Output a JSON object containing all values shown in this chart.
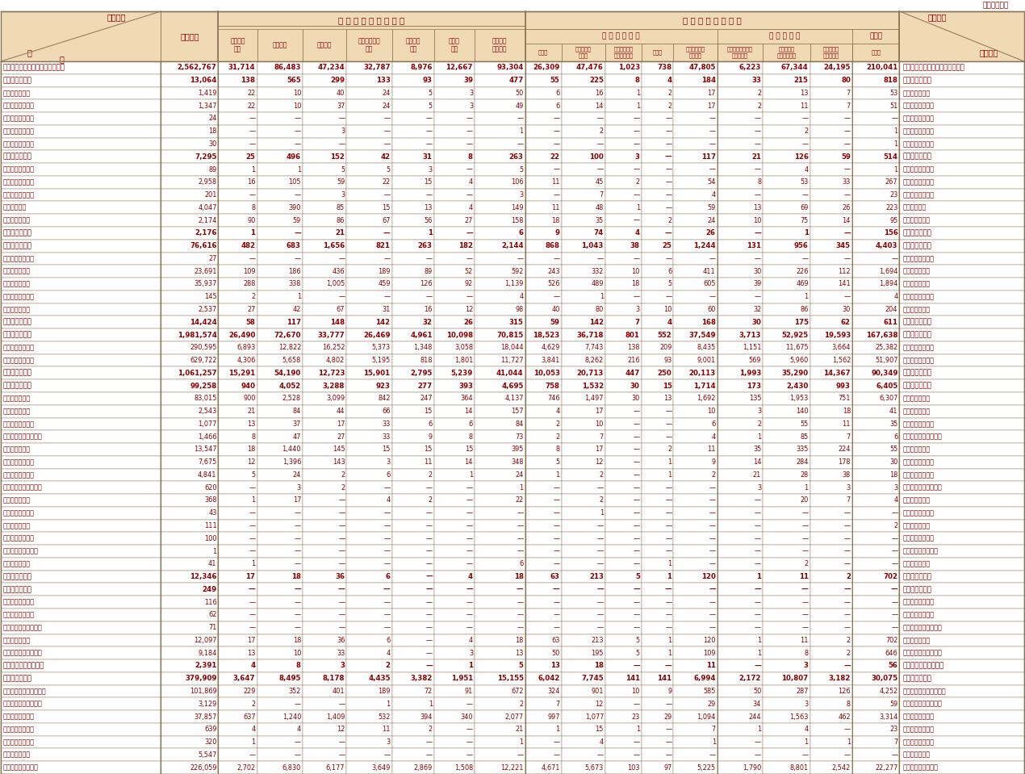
{
  "rows": [
    [
      "刑法犯総数（交通業過を除く。）",
      "2,562,767",
      "31,714",
      "86,483",
      "47,234",
      "32,787",
      "8,976",
      "12,667",
      "93,304",
      "26,309",
      "47,476",
      "1,023",
      "738",
      "47,805",
      "6,223",
      "67,344",
      "24,195",
      "210,041",
      "刑法犯総数（交通業過を除く。）"
    ],
    [
      "凶　　悪　　犯",
      "13,064",
      "138",
      "565",
      "299",
      "133",
      "93",
      "39",
      "477",
      "55",
      "225",
      "8",
      "4",
      "184",
      "33",
      "215",
      "80",
      "818",
      "凶　　悪　　犯"
    ],
    [
      "殺　　　　　人",
      "1,419",
      "22",
      "10",
      "40",
      "24",
      "5",
      "3",
      "50",
      "6",
      "16",
      "1",
      "2",
      "17",
      "2",
      "13",
      "7",
      "53",
      "殺　　　　　人"
    ],
    [
      "　殺　　　　　人",
      "1,347",
      "22",
      "10",
      "37",
      "24",
      "5",
      "3",
      "49",
      "6",
      "14",
      "1",
      "2",
      "17",
      "2",
      "11",
      "7",
      "51",
      "　殺　　　　　人"
    ],
    [
      "　嬰　　児　　殺",
      "24",
      "—",
      "—",
      "—",
      "—",
      "—",
      "—",
      "—",
      "—",
      "—",
      "—",
      "—",
      "—",
      "—",
      "—",
      "—",
      "—",
      "　嬰　　児　　殺"
    ],
    [
      "　殺　人　予　備",
      "18",
      "—",
      "—",
      "3",
      "—",
      "—",
      "—",
      "1",
      "—",
      "2",
      "—",
      "—",
      "—",
      "—",
      "2",
      "—",
      "1",
      "　殺　人　予　備"
    ],
    [
      "　自　殺　関　与",
      "30",
      "—",
      "—",
      "—",
      "—",
      "—",
      "—",
      "—",
      "—",
      "—",
      "—",
      "—",
      "—",
      "—",
      "—",
      "—",
      "1",
      "　自　殺　関　与"
    ],
    [
      "強　　　　　盗",
      "7,295",
      "25",
      "496",
      "152",
      "42",
      "31",
      "8",
      "263",
      "22",
      "100",
      "3",
      "—",
      "117",
      "21",
      "126",
      "59",
      "514",
      "強　　　　　盗"
    ],
    [
      "　強　盗　殺　人",
      "89",
      "1",
      "1",
      "5",
      "5",
      "3",
      "—",
      "5",
      "—",
      "—",
      "—",
      "—",
      "—",
      "—",
      "4",
      "—",
      "1",
      "　強　盗　殺　人"
    ],
    [
      "　強　盗　傷　人",
      "2,958",
      "16",
      "105",
      "59",
      "22",
      "15",
      "4",
      "106",
      "11",
      "45",
      "2",
      "—",
      "54",
      "8",
      "53",
      "33",
      "267",
      "　強　盗　傷　人"
    ],
    [
      "　強　盗　強　姦",
      "201",
      "—",
      "—",
      "3",
      "—",
      "—",
      "—",
      "3",
      "—",
      "7",
      "—",
      "—",
      "4",
      "—",
      "—",
      "—",
      "23",
      "　強　盗　強　姦"
    ],
    [
      "強盗・準強盗",
      "4,047",
      "8",
      "390",
      "85",
      "15",
      "13",
      "4",
      "149",
      "11",
      "48",
      "1",
      "—",
      "59",
      "13",
      "69",
      "26",
      "223",
      "強盗・準強盗"
    ],
    [
      "放　　　　　火",
      "2,174",
      "90",
      "59",
      "86",
      "67",
      "56",
      "27",
      "158",
      "18",
      "35",
      "—",
      "2",
      "24",
      "10",
      "75",
      "14",
      "95",
      "放　　　　　火"
    ],
    [
      "強　　　　　姦",
      "2,176",
      "1",
      "—",
      "21",
      "—",
      "1",
      "—",
      "6",
      "9",
      "74",
      "4",
      "—",
      "26",
      "—",
      "1",
      "—",
      "156",
      "強　　　　　姦"
    ],
    [
      "粗　　暴　　犯",
      "76,616",
      "482",
      "683",
      "1,656",
      "821",
      "263",
      "182",
      "2,144",
      "868",
      "1,043",
      "38",
      "25",
      "1,244",
      "131",
      "956",
      "345",
      "4,403",
      "粗　　暴　　犯"
    ],
    [
      "　凶器準備集合行",
      "27",
      "—",
      "—",
      "—",
      "—",
      "—",
      "—",
      "—",
      "—",
      "—",
      "—",
      "—",
      "—",
      "—",
      "—",
      "—",
      "—",
      "　凶器準備集合行"
    ],
    [
      "暴　　　　　行",
      "23,691",
      "109",
      "186",
      "436",
      "189",
      "89",
      "52",
      "592",
      "243",
      "332",
      "10",
      "6",
      "411",
      "30",
      "226",
      "112",
      "1,694",
      "暴　　　　　行"
    ],
    [
      "傷　　　　　害",
      "35,937",
      "288",
      "338",
      "1,005",
      "459",
      "126",
      "92",
      "1,139",
      "526",
      "489",
      "18",
      "5",
      "605",
      "39",
      "469",
      "141",
      "1,894",
      "傷　　　　　害"
    ],
    [
      "　うち）傷害致死",
      "145",
      "2",
      "1",
      "—",
      "—",
      "—",
      "—",
      "4",
      "—",
      "1",
      "—",
      "—",
      "—",
      "—",
      "1",
      "—",
      "4",
      "　うち）傷害致死"
    ],
    [
      "脅　　　　　迫",
      "2,537",
      "27",
      "42",
      "67",
      "31",
      "16",
      "12",
      "98",
      "40",
      "80",
      "3",
      "10",
      "60",
      "32",
      "86",
      "30",
      "204",
      "脅　　　　　迫"
    ],
    [
      "恐　　　　　喝",
      "14,424",
      "58",
      "117",
      "148",
      "142",
      "32",
      "26",
      "315",
      "59",
      "142",
      "7",
      "4",
      "168",
      "30",
      "175",
      "62",
      "611",
      "恐　　　　　喝"
    ],
    [
      "窃　　盗　　犯",
      "1,981,574",
      "26,490",
      "72,670",
      "33,777",
      "26,469",
      "4,961",
      "10,098",
      "70,815",
      "18,523",
      "36,718",
      "801",
      "552",
      "37,549",
      "3,713",
      "52,925",
      "19,593",
      "167,638",
      "窃　　盗　　犯"
    ],
    [
      "　侵　　入　　盗",
      "290,595",
      "6,893",
      "12,822",
      "16,252",
      "5,373",
      "1,348",
      "3,058",
      "18,044",
      "4,629",
      "7,743",
      "138",
      "209",
      "8,435",
      "1,151",
      "11,675",
      "3,664",
      "25,382",
      "　侵　　入　　盗"
    ],
    [
      "　乗　り　物　盗",
      "629,722",
      "4,306",
      "5,658",
      "4,802",
      "5,195",
      "818",
      "1,801",
      "11,727",
      "3,841",
      "8,262",
      "216",
      "93",
      "9,001",
      "569",
      "5,960",
      "1,562",
      "51,907",
      "　乗　り　物　盗"
    ],
    [
      "非　侵　入　盗",
      "1,061,257",
      "15,291",
      "54,190",
      "12,723",
      "15,901",
      "2,795",
      "5,239",
      "41,044",
      "10,053",
      "20,713",
      "447",
      "250",
      "20,113",
      "1,993",
      "35,290",
      "14,367",
      "90,349",
      "非　侵　入　盗"
    ],
    [
      "知　　能　　犯",
      "99,258",
      "940",
      "4,052",
      "3,288",
      "923",
      "277",
      "393",
      "4,695",
      "758",
      "1,532",
      "30",
      "15",
      "1,714",
      "173",
      "2,430",
      "993",
      "6,405",
      "知　　能　　犯"
    ],
    [
      "詐　　　　　欺",
      "83,015",
      "900",
      "2,528",
      "3,099",
      "842",
      "247",
      "364",
      "4,137",
      "746",
      "1,497",
      "30",
      "13",
      "1,692",
      "135",
      "1,953",
      "751",
      "6,307",
      "詐　　　　　欺"
    ],
    [
      "横　　　　　領",
      "2,543",
      "21",
      "84",
      "44",
      "66",
      "15",
      "14",
      "157",
      "4",
      "17",
      "—",
      "—",
      "10",
      "3",
      "140",
      "18",
      "41",
      "横　　　　　領"
    ],
    [
      "　横　　　　　領",
      "1,077",
      "13",
      "37",
      "17",
      "33",
      "6",
      "6",
      "84",
      "2",
      "10",
      "—",
      "—",
      "6",
      "2",
      "55",
      "11",
      "35",
      "　横　　　　　領"
    ],
    [
      "　業　務　上　横　領",
      "1,466",
      "8",
      "47",
      "27",
      "33",
      "9",
      "8",
      "73",
      "2",
      "7",
      "—",
      "—",
      "4",
      "1",
      "85",
      "7",
      "6",
      "　業　務　上　横　領"
    ],
    [
      "偽　　　　　造",
      "13,547",
      "18",
      "1,440",
      "145",
      "15",
      "15",
      "15",
      "395",
      "8",
      "17",
      "—",
      "2",
      "11",
      "35",
      "335",
      "224",
      "55",
      "偽　　　　　造"
    ],
    [
      "　通　貨　偽　造",
      "7,675",
      "12",
      "1,396",
      "143",
      "3",
      "11",
      "14",
      "348",
      "5",
      "12",
      "—",
      "1",
      "9",
      "14",
      "284",
      "178",
      "30",
      "　通　貨　偽　造"
    ],
    [
      "　文　書　偽　造",
      "4,841",
      "5",
      "24",
      "2",
      "6",
      "2",
      "1",
      "24",
      "1",
      "2",
      "—",
      "1",
      "2",
      "21",
      "28",
      "38",
      "18",
      "　文　書　偽　造"
    ],
    [
      "　支払い用カード偽造",
      "620",
      "—",
      "3",
      "2",
      "—",
      "—",
      "—",
      "1",
      "—",
      "—",
      "—",
      "—",
      "—",
      "3",
      "1",
      "3",
      "3",
      "　支払い用カード偽造"
    ],
    [
      "　有価証券偽造",
      "368",
      "1",
      "17",
      "—",
      "4",
      "2",
      "—",
      "22",
      "—",
      "2",
      "—",
      "—",
      "—",
      "—",
      "20",
      "7",
      "4",
      "　有価証券偽造"
    ],
    [
      "　印　章　偽　造",
      "43",
      "—",
      "—",
      "—",
      "—",
      "—",
      "—",
      "—",
      "—",
      "1",
      "—",
      "—",
      "—",
      "—",
      "—",
      "—",
      "—",
      "　印　章　偽　造"
    ],
    [
      "汚　　　　　職",
      "111",
      "—",
      "—",
      "—",
      "—",
      "—",
      "—",
      "—",
      "—",
      "—",
      "—",
      "—",
      "—",
      "—",
      "—",
      "—",
      "2",
      "汚　　　　　職"
    ],
    [
      "　うち）賄　　賂",
      "100",
      "—",
      "—",
      "—",
      "—",
      "—",
      "—",
      "—",
      "—",
      "—",
      "—",
      "—",
      "—",
      "—",
      "—",
      "—",
      "—",
      "　うち）賄　　賂"
    ],
    [
      "あっせん利得処罰法",
      "1",
      "—",
      "—",
      "—",
      "—",
      "—",
      "—",
      "—",
      "—",
      "—",
      "—",
      "—",
      "—",
      "—",
      "—",
      "—",
      "—",
      "あっせん利得処罰法"
    ],
    [
      "背　　　　　任",
      "41",
      "1",
      "—",
      "—",
      "—",
      "—",
      "—",
      "6",
      "—",
      "—",
      "—",
      "1",
      "—",
      "—",
      "2",
      "—",
      "—",
      "背　　　　　任"
    ],
    [
      "風　　俗　　犯",
      "12,346",
      "17",
      "18",
      "36",
      "6",
      "—",
      "4",
      "18",
      "63",
      "213",
      "5",
      "1",
      "120",
      "1",
      "11",
      "2",
      "702",
      "風　　俗　　犯"
    ],
    [
      "賭　　　　　博",
      "249",
      "—",
      "—",
      "—",
      "—",
      "—",
      "—",
      "—",
      "—",
      "—",
      "—",
      "—",
      "—",
      "—",
      "—",
      "—",
      "—",
      "賭　　　　　博"
    ],
    [
      "　普　通　賭　博",
      "116",
      "—",
      "—",
      "—",
      "—",
      "—",
      "—",
      "—",
      "—",
      "—",
      "—",
      "—",
      "—",
      "—",
      "—",
      "—",
      "—",
      "　普　通　賭　博"
    ],
    [
      "　常　習　賭　博",
      "62",
      "—",
      "—",
      "—",
      "—",
      "—",
      "—",
      "—",
      "—",
      "—",
      "—",
      "—",
      "—",
      "—",
      "—",
      "—",
      "—",
      "　常　習　賭　博"
    ],
    [
      "　賭　博　開　張　等",
      "71",
      "—",
      "—",
      "—",
      "—",
      "—",
      "—",
      "—",
      "—",
      "—",
      "—",
      "—",
      "—",
      "—",
      "—",
      "—",
      "—",
      "　賭　博　開　張　等"
    ],
    [
      "わ　い　せ　つ",
      "12,097",
      "17",
      "18",
      "36",
      "6",
      "—",
      "4",
      "18",
      "63",
      "213",
      "5",
      "1",
      "120",
      "1",
      "11",
      "2",
      "702",
      "わ　い　せ　つ"
    ],
    [
      "　うち）強制わいせつ",
      "9,184",
      "13",
      "10",
      "33",
      "4",
      "—",
      "3",
      "13",
      "50",
      "195",
      "5",
      "1",
      "109",
      "1",
      "8",
      "2",
      "646",
      "　うち）強制わいせつ"
    ],
    [
      "　うち）公然わいせつ",
      "2,391",
      "4",
      "8",
      "3",
      "2",
      "—",
      "1",
      "5",
      "13",
      "18",
      "—",
      "—",
      "11",
      "—",
      "3",
      "—",
      "56",
      "　うち）公然わいせつ"
    ],
    [
      "その他の刑法犯",
      "379,909",
      "3,647",
      "8,495",
      "8,178",
      "4,435",
      "3,382",
      "1,951",
      "15,155",
      "6,042",
      "7,745",
      "141",
      "141",
      "6,994",
      "2,172",
      "10,807",
      "3,182",
      "30,075",
      "その他の刑法犯"
    ],
    [
      "　うち）占有離脱物横領",
      "101,869",
      "229",
      "352",
      "401",
      "189",
      "72",
      "91",
      "672",
      "324",
      "901",
      "10",
      "9",
      "585",
      "50",
      "287",
      "126",
      "4,252",
      "　うち）占有離脱物横領"
    ],
    [
      "　うち）公務執行妨害",
      "3,129",
      "2",
      "—",
      "—",
      "1",
      "1",
      "—",
      "2",
      "7",
      "12",
      "—",
      "—",
      "29",
      "34",
      "3",
      "8",
      "59",
      "　うち）公務執行妨害"
    ],
    [
      "　うち）住居侵入",
      "37,857",
      "637",
      "1,240",
      "1,409",
      "532",
      "394",
      "340",
      "2,077",
      "997",
      "1,077",
      "23",
      "29",
      "1,094",
      "244",
      "1,563",
      "462",
      "3,314",
      "　うち）住居侵入"
    ],
    [
      "　うち）逮捕監禁",
      "639",
      "4",
      "4",
      "12",
      "11",
      "2",
      "—",
      "21",
      "1",
      "15",
      "1",
      "—",
      "7",
      "1",
      "4",
      "—",
      "23",
      "　うち）逮捕監禁"
    ],
    [
      "　うち）暗取誘拐",
      "320",
      "1",
      "—",
      "—",
      "3",
      "—",
      "—",
      "1",
      "—",
      "4",
      "—",
      "—",
      "1",
      "—",
      "1",
      "1",
      "7",
      "　うち）暗取誘拐"
    ],
    [
      "　うち）盗品等",
      "5,547",
      "—",
      "—",
      "—",
      "—",
      "—",
      "—",
      "—",
      "—",
      "—",
      "—",
      "—",
      "—",
      "—",
      "—",
      "—",
      "—",
      "　うち）盗品等"
    ],
    [
      "　うち）器物損壊等",
      "226,059",
      "2,702",
      "6,830",
      "6,177",
      "3,649",
      "2,869",
      "1,508",
      "12,221",
      "4,671",
      "5,673",
      "103",
      "97",
      "5,225",
      "1,790",
      "8,801",
      "2,542",
      "22,277",
      "　うち）器物損壊等"
    ]
  ],
  "bold_rows": [
    0,
    1,
    7,
    13,
    14,
    20,
    21,
    24,
    25,
    40,
    41,
    47,
    48
  ],
  "header_bg": "#F0D9B5",
  "data_bg": "#FFFFFF",
  "text_color": "#8B0000",
  "border_color": "#8B7355",
  "bold_color": "#8B0000"
}
